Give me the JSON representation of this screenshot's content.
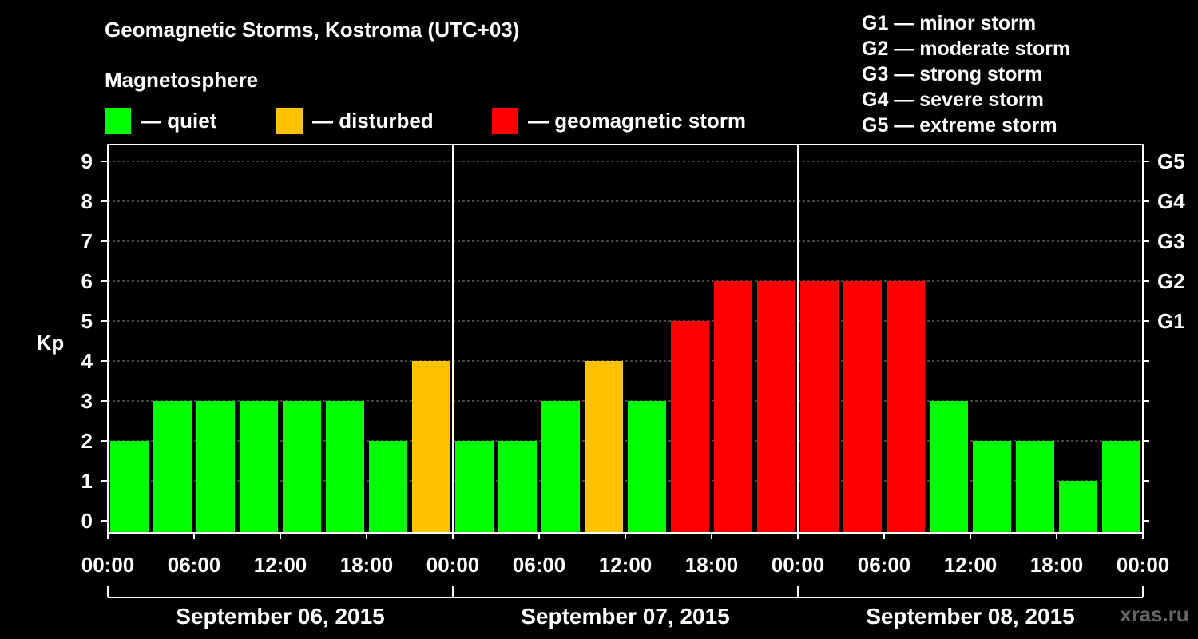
{
  "header": {
    "title": "Geomagnetic Storms, Kostroma (UTC+03)",
    "subtitle": "Magnetosphere"
  },
  "legend": [
    {
      "label": "— quiet",
      "color": "#00ff00"
    },
    {
      "label": "— disturbed",
      "color": "#ffc000"
    },
    {
      "label": "— geomagnetic storm",
      "color": "#ff0000"
    }
  ],
  "storm_scale": [
    "G1 — minor storm",
    "G2 — moderate storm",
    "G3 — strong storm",
    "G4 — severe storm",
    "G5 — extreme storm"
  ],
  "watermark": "xras.ru",
  "chart_data": {
    "type": "bar",
    "ylabel": "Kp",
    "ylim": [
      0,
      9
    ],
    "yticks": [
      "0",
      "1",
      "2",
      "3",
      "4",
      "5",
      "6",
      "7",
      "8",
      "9"
    ],
    "right_ticks": [
      {
        "value": 5,
        "label": "G1"
      },
      {
        "value": 6,
        "label": "G2"
      },
      {
        "value": 7,
        "label": "G3"
      },
      {
        "value": 8,
        "label": "G4"
      },
      {
        "value": 9,
        "label": "G5"
      }
    ],
    "xtick_labels": [
      "00:00",
      "06:00",
      "12:00",
      "18:00",
      "00:00",
      "06:00",
      "12:00",
      "18:00",
      "00:00",
      "06:00",
      "12:00",
      "18:00",
      "00:00"
    ],
    "days": [
      "September 06, 2015",
      "September 07, 2015",
      "September 08, 2015"
    ],
    "interval_hours": 3,
    "values": [
      2,
      3,
      3,
      3,
      3,
      3,
      2,
      4,
      2,
      2,
      3,
      4,
      3,
      5,
      6,
      6,
      6,
      6,
      6,
      3,
      2,
      2,
      1,
      2
    ],
    "colors": {
      "quiet": "#00ff00",
      "disturbed": "#ffc000",
      "storm": "#ff0000"
    },
    "thresholds": {
      "disturbed": 4,
      "storm": 5
    },
    "grid": true
  }
}
